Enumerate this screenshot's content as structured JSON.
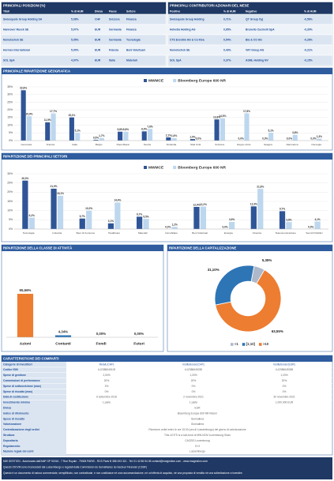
{
  "top_positions": {
    "title": "PRINCIPALI POSIZIONI (%)",
    "columns": [
      "Titoli",
      "% di AUM",
      "Divisa",
      "Paese",
      "Settore"
    ],
    "rows": [
      [
        "Swissquote Group Holding SA",
        "5,08%",
        "CHF",
        "Svizzera",
        "Finanza"
      ],
      [
        "Hannover Rueck SE",
        "5,07%",
        "EUR",
        "Germania",
        "Finanza"
      ],
      [
        "Nemetschek SE",
        "5,05%",
        "EUR",
        "Germania",
        "Tecnologia"
      ],
      [
        "Hermès International",
        "5,00%",
        "EUR",
        "Francia",
        "Beni Voluttuari"
      ],
      [
        "SOL SpA",
        "4,97%",
        "EUR",
        "Italia",
        "Materiali"
      ]
    ]
  },
  "contributors": {
    "title": "PRINCIPALI CONTRIBUTORI AZIONARI DEL MESE",
    "columns": [
      "Positivo",
      "% di AUM",
      "Negativo",
      "% di AUM"
    ],
    "rows": [
      [
        "Swissquote Group Holding",
        "0,71%",
        "QT Group Oyj",
        "-0,56%"
      ],
      [
        "Helvetia Holding AG",
        "0,65%",
        "Brunello Cucinelli SpA",
        "-0,30%"
      ],
      [
        "CTS Eventim AG & Co KGa",
        "0,54%",
        "Bio & CO AG",
        "-0,26%"
      ],
      [
        "Nemetschek SE",
        "0,43%",
        "VAT Group AG",
        "-0,21%"
      ],
      [
        "SOL SpA",
        "0,37%",
        "ASML Holding NV",
        "-0,15%"
      ]
    ]
  },
  "chart_data": [
    {
      "type": "bar",
      "title": "PRINCIPALE RIPARTIZIONE GEOGRAFICA",
      "grid": true,
      "legend": "top",
      "categories": [
        "Germania",
        "Francia",
        "Italia",
        "Belgio",
        "Paesi Bassi",
        "Svezia",
        "Finlandia",
        "Stati Uniti",
        "Svizzera",
        "Regno Unito",
        "Spagna",
        "Danimarca",
        "Norvegia"
      ],
      "series": [
        {
          "name": "MWMCE",
          "color": "#2f5597",
          "values": [
            32.8,
            11.9,
            15.1,
            0.5,
            5.8,
            6.0,
            2.1,
            1.0,
            13.8,
            0,
            0,
            0,
            0
          ],
          "value_labels": [
            "32,8%",
            "11,9%",
            "15,1%",
            "0,5%",
            "5,8%",
            "6,0%",
            "2,1%",
            "1,0%",
            "13,8%",
            "0,0%",
            "0,0%",
            "0,0%",
            "0,0%"
          ]
        },
        {
          "name": "Bloomberg Europe 600 NR",
          "color": "#bdd7ee",
          "values": [
            15.9,
            17.7,
            5.1,
            1.7,
            5.8,
            7.6,
            1.6,
            0,
            14.5,
            17.8,
            5.1,
            3.8,
            1.3
          ],
          "value_labels": [
            "15,9%",
            "17,7%",
            "5,1%",
            "1,7%",
            "5,8%",
            "7,6%",
            "1,6%",
            "0,0%",
            "14,5%",
            "17,8%",
            "5,1%",
            "3,8%",
            "1,3%"
          ]
        }
      ],
      "ylim": [
        0,
        35
      ],
      "yticks": [
        {
          "value": 0,
          "label": "0%"
        },
        {
          "value": 5,
          "label": "5%"
        },
        {
          "value": 10,
          "label": "10%"
        },
        {
          "value": 15,
          "label": "15%"
        },
        {
          "value": 20,
          "label": "20%"
        },
        {
          "value": 25,
          "label": "25%"
        },
        {
          "value": 30,
          "label": "30%"
        },
        {
          "value": 35,
          "label": "35%"
        }
      ]
    },
    {
      "type": "bar",
      "title": "RIPARTIZIONE DEI PRINCIPALI SETTORI",
      "grid": true,
      "legend": "top",
      "categories": [
        "Tecnologia",
        "Industria",
        "Beni di Consumo",
        "Healthcare",
        "Materiali",
        "Immobiliare",
        "Beni Voluttuari",
        "Energia",
        "Finanza",
        "Telecomunicazione",
        "Servizi Pubblici"
      ],
      "series": [
        {
          "name": "MWMCE",
          "color": "#2f5597",
          "values": [
            26.3,
            21.9,
            5.7,
            3.1,
            6.7,
            0,
            12.0,
            0,
            12.3,
            9.7,
            0
          ],
          "value_labels": [
            "26,3%",
            "21,9%",
            "5,7%",
            "3,1%",
            "6,7%",
            "0,0%",
            "12,0%",
            "0,0%",
            "12,3%",
            "9,7%",
            "0,0%"
          ]
        },
        {
          "name": "Bloomberg Europe 600 NR",
          "color": "#bdd7ee",
          "values": [
            6.2,
            18.1,
            10.0,
            14.4,
            5.5,
            1.2,
            12.2,
            3.9,
            21.8,
            3.8,
            4.1
          ],
          "value_labels": [
            "6,2%",
            "18,1%",
            "10,0%",
            "14,4%",
            "5,5%",
            "1,2%",
            "12,2%",
            "3,9%",
            "21,8%",
            "3,8%",
            "4,1%"
          ]
        }
      ],
      "ylim": [
        0,
        30
      ],
      "yticks": [
        {
          "value": 0,
          "label": "0%"
        },
        {
          "value": 5,
          "label": "5%"
        },
        {
          "value": 10,
          "label": "10%"
        },
        {
          "value": 15,
          "label": "15%"
        },
        {
          "value": 20,
          "label": "20%"
        },
        {
          "value": 25,
          "label": "25%"
        },
        {
          "value": 30,
          "label": "30%"
        }
      ]
    },
    {
      "type": "column",
      "title": "RIPARTIZIONE DELLA CLASSE DI ATTIVITÀ",
      "categories": [
        "Azioni",
        "Contanti",
        "Fondi",
        "Futuri"
      ],
      "values": [
        95.66,
        4.34,
        0,
        0
      ],
      "value_labels": [
        "95,66%",
        "4,34%",
        "0,00%",
        "0,00%"
      ],
      "colors": [
        "#ed7d31",
        "#2e75b6",
        "#2e75b6",
        "#2e75b6"
      ]
    },
    {
      "type": "pie",
      "title": "RIPARTIZIONE DELLA CAPITALIZZAZIONE",
      "donut": true,
      "legend": "bottom",
      "categories": [
        "<1",
        "[1;10]",
        ">10"
      ],
      "values": [
        5.35,
        31.1,
        63.55
      ],
      "value_labels": [
        "5,35%",
        "31,10%",
        "63,55%"
      ],
      "colors": [
        "#adb9ca",
        "#2e75b6",
        "#ed7d31"
      ]
    }
  ],
  "characteristics": {
    "title": "CARATTERISTICHE DEI COMPARTI",
    "columns": [
      "Categorie di investitori",
      "Retail (CHF)",
      "Institutional (CHF)",
      "Institutional (EUR)"
    ],
    "rows": [
      [
        "Codice ISIN",
        "LU2386645100",
        "LU2386645282",
        "LU2386645365"
      ],
      [
        "Spese di gestione",
        "2,00%",
        "1,20%",
        "1,20%"
      ],
      [
        "Commissioni di performance",
        "20%",
        "20%",
        "20%"
      ],
      [
        "Spese di sottoscrizione (max)",
        "3%",
        "0%",
        "0%"
      ],
      [
        "Spese di riscatto (max)",
        "0%",
        "0%",
        "0%"
      ],
      [
        "Data di costituzione",
        "6 settembre 2018",
        "2 novembre 2021",
        "30 novembre 2021"
      ],
      [
        "Investimento minimo",
        "1 parte",
        "1 parte",
        "1.000.000 EUR"
      ]
    ],
    "shared_rows": [
      [
        "Divisa",
        "EUR"
      ],
      [
        "Indice di riferimento",
        "Bloomberg Europe 600 NR Return"
      ],
      [
        "Spese di riscatto",
        "Giornaliera"
      ],
      [
        "Valorizzazione",
        "Giornaliera"
      ],
      [
        "Centralizzazione degli ordini",
        "Ricezione ordini entro le ore 15.00 (ora di Lussemburgo) del giorno di valorizzazione"
      ],
      [
        "Struttura",
        "This UCITS is a sub-fund of MW-NCM Luxembourg Sicav"
      ],
      [
        "Depositaria",
        "CACEIS Luxembourg"
      ],
      [
        "Regolamento",
        "G+2"
      ],
      [
        "Nazione legale del conti",
        "Lussemburgo"
      ]
    ]
  },
  "footer": {
    "lines": [
      "MW GESTION - Autorizzata dall'AMF GP 92016 - 7 Rue Royale - 75008 PARIS - RCS Paris B 388 493 321 - Tel: 01 42 86 54 45 contact@mwgestion.com - www.mwgestion.com",
      "Questo OICVM sono riconosciuti dal Lussemburgo e regolati dalla Commission de Surveillance du Secteur Financier (CSSF)",
      "Questo è un documento di natura commerciale, semplificato, non contrattuale, e non costituisce né una raccomandazione, né un'offerta di acquisto, né una proposta di vendita né una sollecitazione a investire."
    ]
  }
}
